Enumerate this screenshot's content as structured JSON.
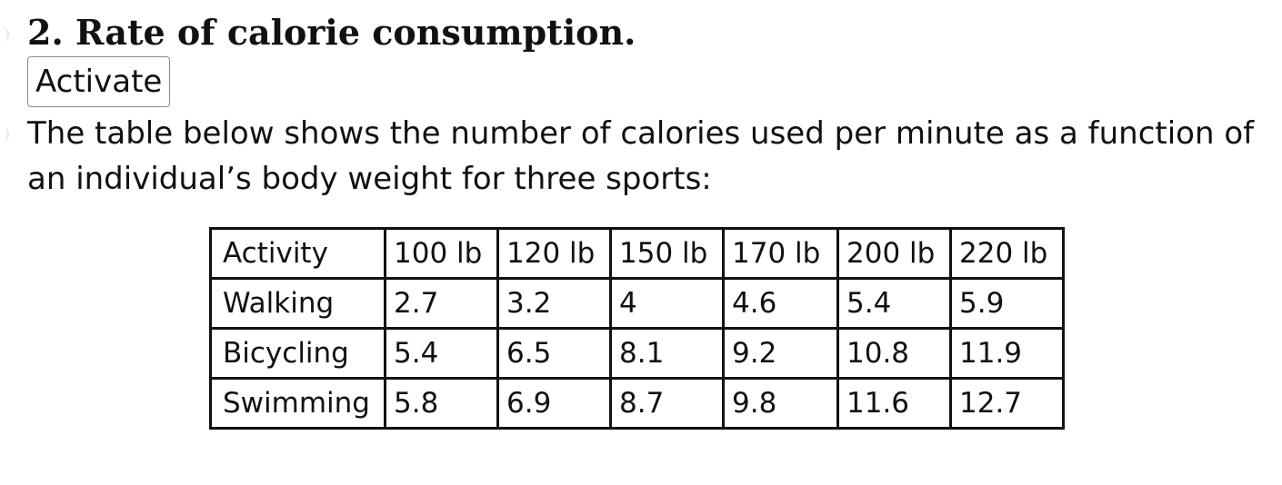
{
  "heading": "2. Rate of calorie consumption.",
  "activate_button": "Activate",
  "intro": "The table below shows the number of calories used per minute as a function of an individual’s body weight for three sports:",
  "table": {
    "headers": [
      "Activity",
      "100 lb",
      "120 lb",
      "150 lb",
      "170 lb",
      "200 lb",
      "220 lb"
    ],
    "rows": [
      [
        "Walking",
        "2.7",
        "3.2",
        "4",
        "4.6",
        "5.4",
        "5.9"
      ],
      [
        "Bicycling",
        "5.4",
        "6.5",
        "8.1",
        "9.2",
        "10.8",
        "11.9"
      ],
      [
        "Swimming",
        "5.8",
        "6.9",
        "8.7",
        "9.8",
        "11.6",
        "12.7"
      ]
    ]
  }
}
